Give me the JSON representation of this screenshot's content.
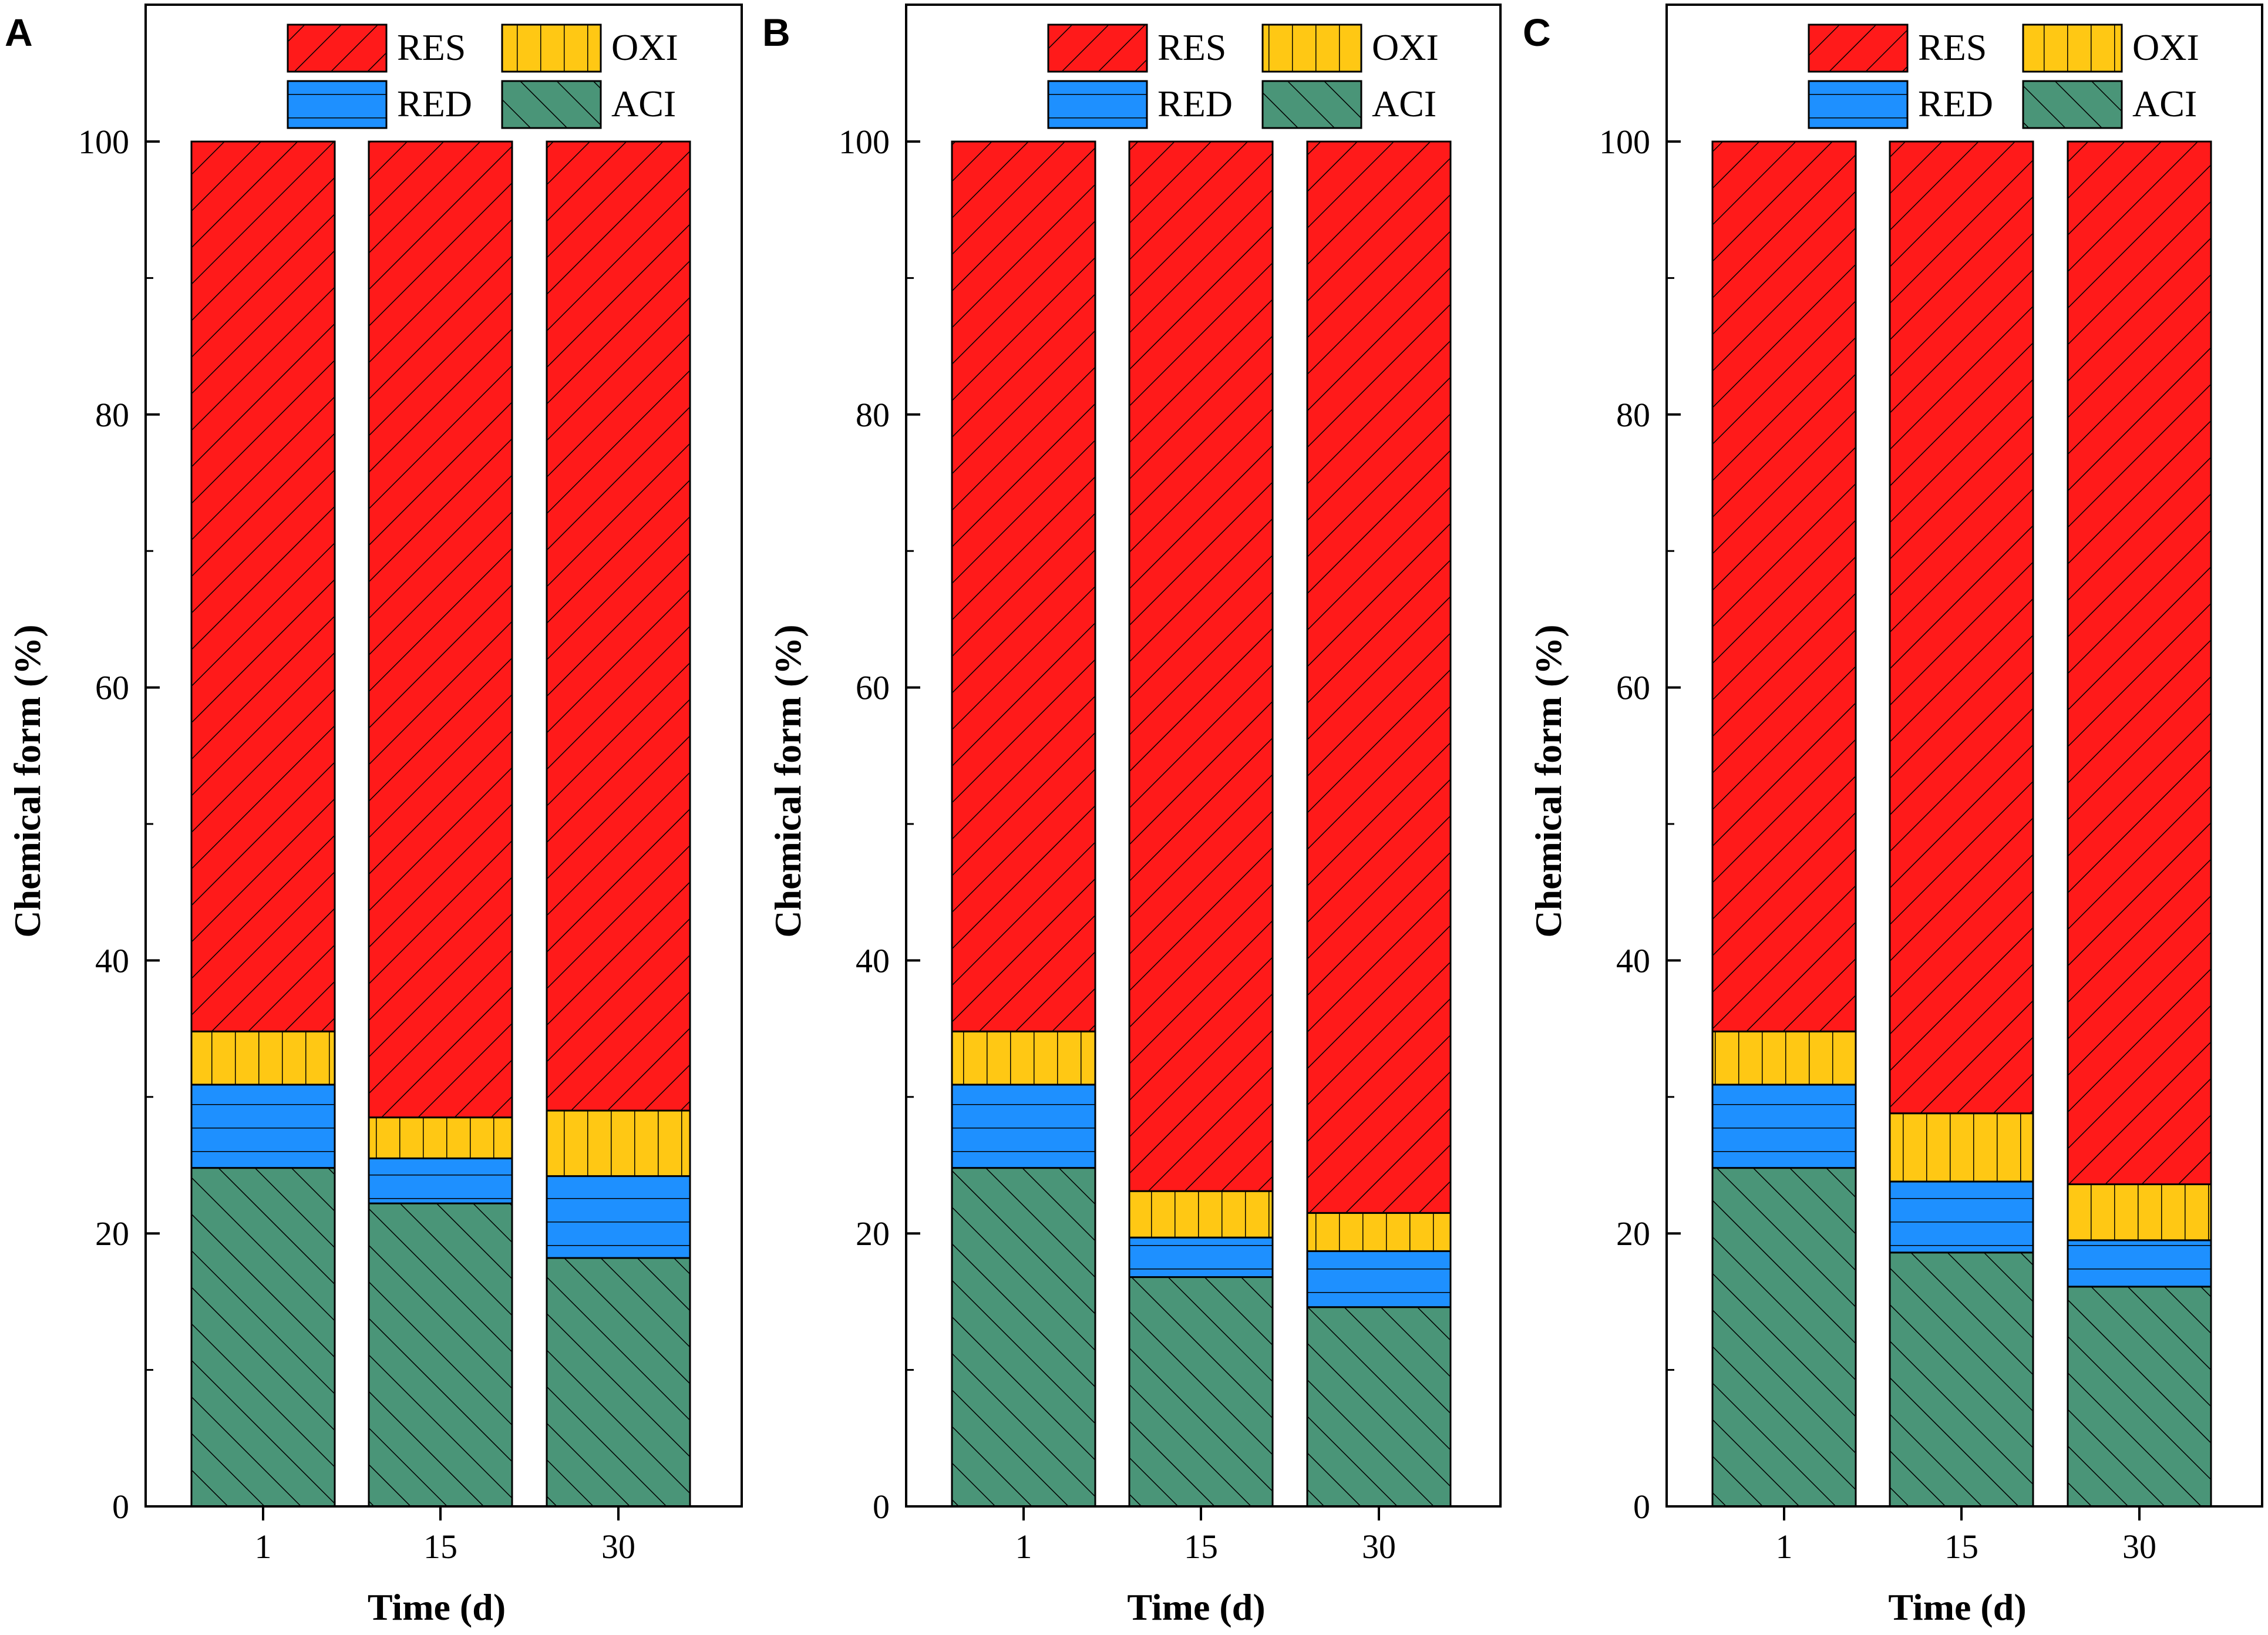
{
  "colors": {
    "RES": "#ff1a1a",
    "OXI": "#ffc814",
    "RED": "#1e90ff",
    "ACI": "#4a9578"
  },
  "chart_data": [
    {
      "type": "bar",
      "stacked": true,
      "panel": "A",
      "categories": [
        "1",
        "15",
        "30"
      ],
      "series": [
        {
          "name": "ACI",
          "values": [
            24.8,
            22.2,
            18.2
          ]
        },
        {
          "name": "RED",
          "values": [
            6.1,
            3.3,
            6.0
          ]
        },
        {
          "name": "OXI",
          "values": [
            3.9,
            3.0,
            4.8
          ]
        },
        {
          "name": "RES",
          "values": [
            65.2,
            71.5,
            71.0
          ]
        }
      ],
      "xlabel": "Time (d)",
      "ylabel": "Chemical form (%)",
      "ylim": [
        0,
        110
      ],
      "yticks": [
        0,
        20,
        40,
        60,
        80,
        100
      ],
      "legend": [
        "RES",
        "OXI",
        "RED",
        "ACI"
      ],
      "legend_position": "top"
    },
    {
      "type": "bar",
      "stacked": true,
      "panel": "B",
      "categories": [
        "1",
        "15",
        "30"
      ],
      "series": [
        {
          "name": "ACI",
          "values": [
            24.8,
            16.8,
            14.6
          ]
        },
        {
          "name": "RED",
          "values": [
            6.1,
            2.9,
            4.1
          ]
        },
        {
          "name": "OXI",
          "values": [
            3.9,
            3.4,
            2.8
          ]
        },
        {
          "name": "RES",
          "values": [
            65.2,
            76.9,
            78.5
          ]
        }
      ],
      "xlabel": "Time (d)",
      "ylabel": "Chemical form (%)",
      "ylim": [
        0,
        110
      ],
      "yticks": [
        0,
        20,
        40,
        60,
        80,
        100
      ],
      "legend": [
        "RES",
        "OXI",
        "RED",
        "ACI"
      ],
      "legend_position": "top"
    },
    {
      "type": "bar",
      "stacked": true,
      "panel": "C",
      "categories": [
        "1",
        "15",
        "30"
      ],
      "series": [
        {
          "name": "ACI",
          "values": [
            24.8,
            18.6,
            16.1
          ]
        },
        {
          "name": "RED",
          "values": [
            6.1,
            5.2,
            3.4
          ]
        },
        {
          "name": "OXI",
          "values": [
            3.9,
            5.0,
            4.1
          ]
        },
        {
          "name": "RES",
          "values": [
            65.2,
            71.2,
            76.4
          ]
        }
      ],
      "xlabel": "Time (d)",
      "ylabel": "Chemical form (%)",
      "ylim": [
        0,
        110
      ],
      "yticks": [
        0,
        20,
        40,
        60,
        80,
        100
      ],
      "legend": [
        "RES",
        "OXI",
        "RED",
        "ACI"
      ],
      "legend_position": "top"
    }
  ]
}
